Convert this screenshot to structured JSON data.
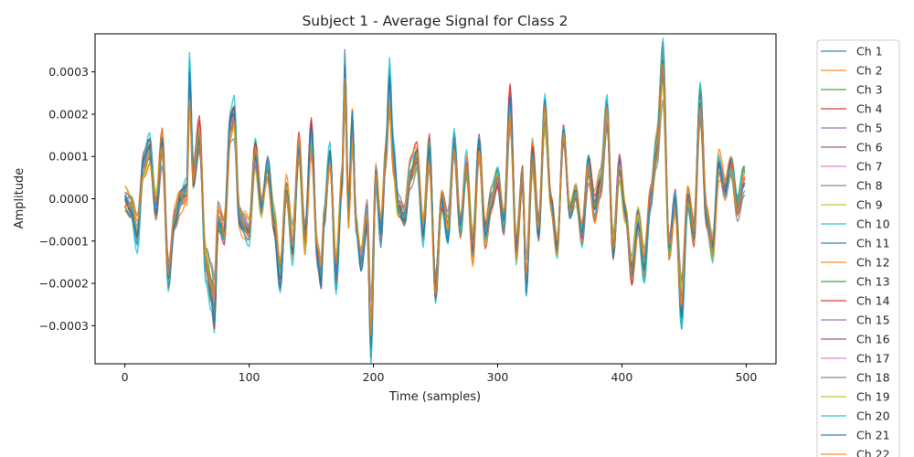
{
  "chart_data": {
    "type": "line",
    "title": "Subject 1 - Average Signal for Class 2",
    "xlabel": "Time (samples)",
    "ylabel": "Amplitude",
    "xlim": [
      -24,
      524
    ],
    "ylim": [
      -0.00039,
      0.00039
    ],
    "xticks": [
      0,
      100,
      200,
      300,
      400,
      500
    ],
    "xtick_labels": [
      "0",
      "100",
      "200",
      "300",
      "400",
      "500"
    ],
    "yticks": [
      -0.0003,
      -0.0002,
      -0.0001,
      0,
      0.0001,
      0.0002,
      0.0003
    ],
    "ytick_labels": [
      "−0.0003",
      "−0.0002",
      "−0.0001",
      "0.0000",
      "0.0001",
      "0.0002",
      "0.0003"
    ],
    "grid": false,
    "legend_placement": "outside-right",
    "n_samples": 500,
    "series_colors": [
      "#1f77b4",
      "#ff7f0e",
      "#2ca02c",
      "#d62728",
      "#9467bd",
      "#8c564b",
      "#e377c2",
      "#7f7f7f",
      "#bcbd22",
      "#17becf",
      "#1f77b4",
      "#ff7f0e",
      "#2ca02c",
      "#d62728",
      "#9467bd",
      "#8c564b",
      "#e377c2",
      "#7f7f7f",
      "#bcbd22",
      "#17becf",
      "#1f77b4",
      "#ff7f0e"
    ],
    "series": [
      {
        "name": "Ch 1"
      },
      {
        "name": "Ch 2"
      },
      {
        "name": "Ch 3"
      },
      {
        "name": "Ch 4"
      },
      {
        "name": "Ch 5"
      },
      {
        "name": "Ch 6"
      },
      {
        "name": "Ch 7"
      },
      {
        "name": "Ch 8"
      },
      {
        "name": "Ch 9"
      },
      {
        "name": "Ch 10"
      },
      {
        "name": "Ch 11"
      },
      {
        "name": "Ch 12"
      },
      {
        "name": "Ch 13"
      },
      {
        "name": "Ch 14"
      },
      {
        "name": "Ch 15"
      },
      {
        "name": "Ch 16"
      },
      {
        "name": "Ch 17"
      },
      {
        "name": "Ch 18"
      },
      {
        "name": "Ch 19"
      },
      {
        "name": "Ch 20"
      },
      {
        "name": "Ch 21"
      },
      {
        "name": "Ch 22"
      }
    ],
    "common_profile": {
      "x": [
        0,
        5,
        10,
        15,
        20,
        25,
        30,
        35,
        40,
        45,
        50,
        52,
        55,
        60,
        65,
        70,
        72,
        75,
        80,
        85,
        88,
        92,
        95,
        100,
        105,
        110,
        115,
        120,
        125,
        130,
        135,
        140,
        145,
        150,
        155,
        158,
        160,
        165,
        170,
        175,
        177,
        180,
        183,
        186,
        190,
        195,
        198,
        202,
        206,
        210,
        213,
        216,
        220,
        225,
        230,
        235,
        240,
        245,
        250,
        255,
        260,
        265,
        270,
        275,
        280,
        285,
        290,
        295,
        300,
        305,
        310,
        315,
        320,
        323,
        328,
        333,
        338,
        343,
        348,
        353,
        358,
        363,
        368,
        373,
        378,
        383,
        388,
        393,
        398,
        403,
        408,
        413,
        418,
        423,
        428,
        433,
        438,
        443,
        448,
        453,
        458,
        463,
        468,
        473,
        478,
        483,
        488,
        493,
        498
      ],
      "y": [
        0.0,
        -2e-05,
        -9e-05,
        8e-05,
        0.00012,
        -2e-05,
        0.00013,
        -0.00018,
        -5e-05,
        0.0,
        2e-05,
        0.00028,
        5e-05,
        0.00015,
        -0.00015,
        -0.00022,
        -0.00027,
        -5e-05,
        -8e-05,
        0.00018,
        0.0002,
        -4e-05,
        -6e-05,
        -8e-05,
        0.0001,
        -2e-05,
        8e-05,
        -5e-05,
        -0.00018,
        2e-05,
        -0.00012,
        0.00012,
        -0.0001,
        0.00015,
        -0.00013,
        -0.00018,
        -5e-05,
        0.0001,
        -0.00018,
        5e-05,
        0.0003,
        -4e-05,
        0.00018,
        -6e-05,
        -0.00015,
        -4e-05,
        -0.00033,
        5e-05,
        -8e-05,
        0.0001,
        0.00027,
        0.0001,
        -2e-05,
        -4e-05,
        6e-05,
        0.0001,
        -8e-05,
        0.00012,
        -0.00021,
        0.0,
        -8e-05,
        0.00013,
        -7e-05,
        8e-05,
        -0.00012,
        0.00012,
        -8e-05,
        0.0,
        5e-05,
        -6e-05,
        0.00023,
        -0.00012,
        5e-05,
        -0.00021,
        0.0001,
        -8e-05,
        0.00021,
        0.0,
        -0.00011,
        0.00014,
        -4e-05,
        2e-05,
        -8e-05,
        8e-05,
        -2e-05,
        4e-05,
        0.0002,
        -0.00012,
        8e-05,
        -4e-05,
        -0.00018,
        -5e-05,
        -0.00016,
        0.0,
        0.00012,
        0.00032,
        -0.00012,
        0.0,
        -0.00026,
        0.0,
        -8e-05,
        0.00023,
        -4e-05,
        -0.00012,
        8e-05,
        2e-05,
        8e-05,
        -2e-05,
        5e-05
      ]
    },
    "series_variation": {
      "scale": [
        1.0,
        1.05,
        0.95,
        1.1,
        0.98,
        1.08,
        0.9,
        0.85,
        0.92,
        1.15,
        1.02,
        1.0,
        0.96,
        1.05,
        0.97,
        1.0,
        0.93,
        0.88,
        0.9,
        1.12,
        1.06,
        0.95
      ],
      "jitter": [
        0.0,
        2.2e-05,
        1.5e-05,
        2e-05,
        1.2e-05,
        1.8e-05,
        1e-05,
        2.5e-05,
        2e-05,
        1.8e-05,
        1.5e-05,
        2.5e-05,
        1.2e-05,
        1.8e-05,
        1.5e-05,
        1.4e-05,
        1.2e-05,
        2e-05,
        2.2e-05,
        1.6e-05,
        1.2e-05,
        2.4e-05
      ]
    }
  }
}
